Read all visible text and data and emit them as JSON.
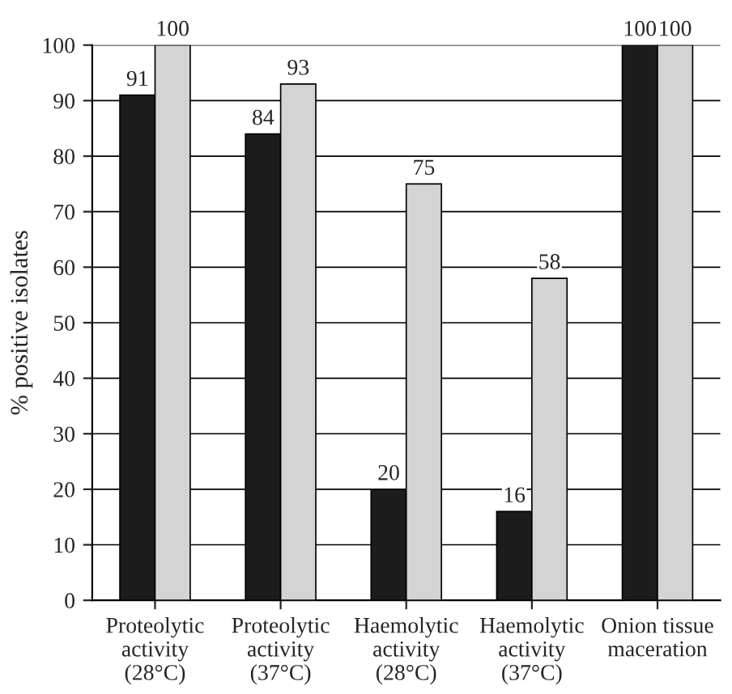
{
  "chart_data": {
    "type": "bar",
    "ylabel": "% positive isolates",
    "categories": [
      "Proteolytic\nactivity\n(28°C)",
      "Proteolytic\nactivity\n(37°C)",
      "Haemolytic\nactivity\n(28°C)",
      "Haemolytic\nactivity\n(37°C)",
      "Onion tissue\nmaceration"
    ],
    "series": [
      {
        "color": "#1c1c1c",
        "values": [
          91,
          84,
          20,
          16,
          100
        ]
      },
      {
        "color": "#d4d4d4",
        "values": [
          100,
          93,
          75,
          58,
          100
        ]
      }
    ],
    "ylim": [
      0,
      100
    ],
    "yticks": [
      0,
      10,
      20,
      30,
      40,
      50,
      60,
      70,
      80,
      90,
      100
    ],
    "grid": "y",
    "data_labels": true
  }
}
